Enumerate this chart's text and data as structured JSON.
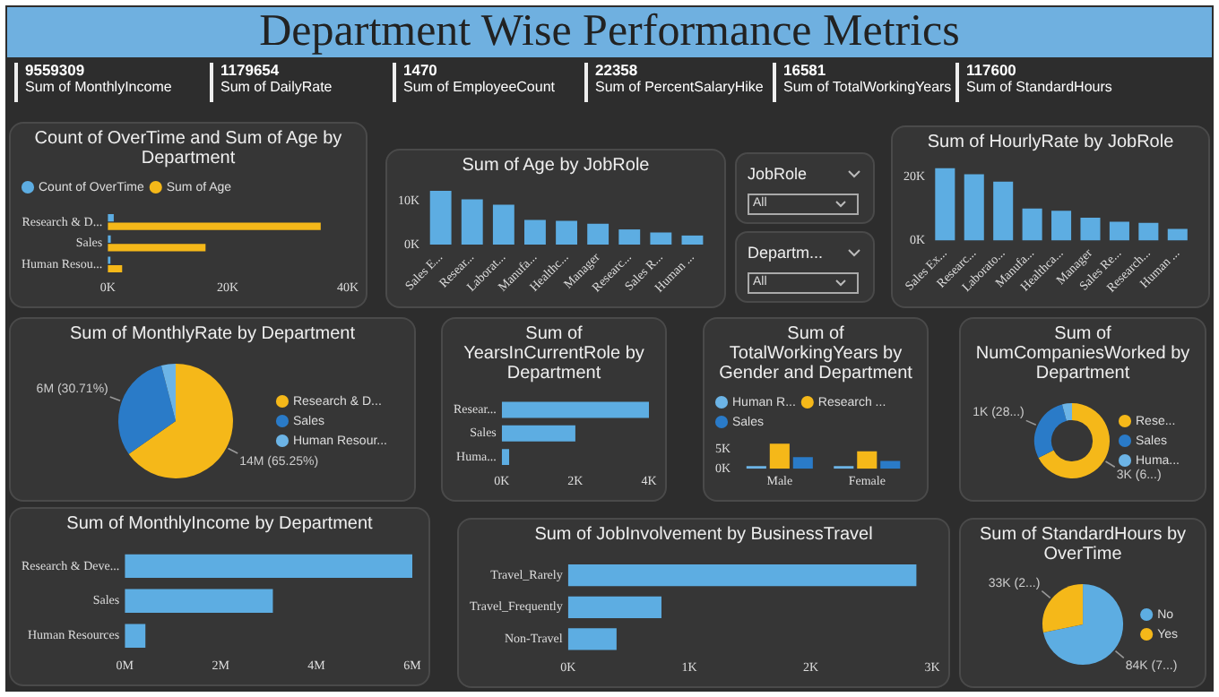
{
  "chart_data": [
    {
      "type": "other",
      "title": "Department Wise Performance Metrics",
      "categories": [
        "Sum of MonthlyIncome",
        "Sum of DailyRate",
        "Sum of EmployeeCount",
        "Sum of PercentSalaryHike",
        "Sum of TotalWorkingYears",
        "Sum of StandardHours"
      ],
      "values": [
        9559309,
        1179654,
        1470,
        22358,
        16581,
        117600
      ],
      "data_labels": true
    },
    {
      "type": "bar",
      "orientation": "horizontal",
      "title": "Count of OverTime and Sum of Age by Department",
      "categories": [
        "Research & D...",
        "Sales",
        "Human Resou..."
      ],
      "series": [
        {
          "name": "Count of OverTime",
          "color": "#5dade2",
          "values": [
            1000,
            500,
            100
          ]
        },
        {
          "name": "Sum of Age",
          "color": "#f5b819",
          "values": [
            35500,
            16300,
            2400
          ]
        }
      ],
      "xlim": [
        0,
        40000
      ],
      "xticks": [
        {
          "value": 0,
          "label": "0K"
        },
        {
          "value": 20000,
          "label": "20K"
        },
        {
          "value": 40000,
          "label": "40K"
        }
      ],
      "legend": "top left"
    },
    {
      "type": "bar",
      "title": "Sum of Age by JobRole",
      "categories": [
        "Sales E...",
        "Resear...",
        "Laborat...",
        "Manufa...",
        "Healthc...",
        "Manager",
        "Researc...",
        "Sales R...",
        "Human ..."
      ],
      "values": [
        12400,
        10400,
        9200,
        5700,
        5500,
        4800,
        3500,
        2800,
        2100
      ],
      "color": "#5dade2",
      "ylim": [
        0,
        12500
      ],
      "yticks": [
        {
          "value": 0,
          "label": "0K"
        },
        {
          "value": 10000,
          "label": "10K"
        }
      ]
    },
    {
      "type": "other",
      "annotations": [
        "JobRole",
        "All",
        "Departm...",
        "All"
      ]
    },
    {
      "type": "bar",
      "title": "Sum of HourlyRate by JobRole",
      "categories": [
        "Sales Ex...",
        "Researc...",
        "Laborato...",
        "Manufa...",
        "Healthca...",
        "Manager",
        "Sales Re...",
        "Research...",
        "Human ..."
      ],
      "values": [
        22600,
        20700,
        18400,
        10000,
        9300,
        7100,
        5900,
        5500,
        3600
      ],
      "color": "#5dade2",
      "ylim": [
        0,
        23000
      ],
      "yticks": [
        {
          "value": 0,
          "label": "0K"
        },
        {
          "value": 20000,
          "label": "20K"
        }
      ]
    },
    {
      "type": "pie",
      "title": "Sum of MonthlyRate by Department",
      "categories": [
        "Research & D...",
        "Sales",
        "Human Resour..."
      ],
      "values": [
        65.25,
        30.71,
        4.04
      ],
      "colors": [
        "#f5b819",
        "#2a7bc8",
        "#6cb4e6"
      ],
      "value_labels": [
        "14M (65.25%)",
        "6M (30.71%)",
        null
      ],
      "legend": "right"
    },
    {
      "type": "bar",
      "orientation": "horizontal",
      "title": "Sum of YearsInCurrentRole by Department",
      "categories": [
        "Resear...",
        "Sales",
        "Huma..."
      ],
      "values": [
        4000,
        2000,
        200
      ],
      "color": "#5dade2",
      "xlim": [
        0,
        4000
      ],
      "xticks": [
        {
          "value": 0,
          "label": "0K"
        },
        {
          "value": 2000,
          "label": "2K"
        },
        {
          "value": 4000,
          "label": "4K"
        }
      ]
    },
    {
      "type": "bar",
      "title": "Sum of TotalWorkingYears by Gender and Department",
      "categories": [
        "Male",
        "Female"
      ],
      "series": [
        {
          "name": "Human R...",
          "color": "#6cb4e6",
          "values": [
            500,
            500
          ]
        },
        {
          "name": "Research ...",
          "color": "#f5b819",
          "values": [
            6500,
            4500
          ]
        },
        {
          "name": "Sales",
          "color": "#2a7bc8",
          "values": [
            3000,
            2000
          ]
        }
      ],
      "ylim": [
        0,
        7000
      ],
      "yticks": [
        {
          "value": 0,
          "label": "0K"
        },
        {
          "value": 5000,
          "label": "5K"
        }
      ],
      "legend": "top left"
    },
    {
      "type": "donut",
      "title": "Sum of NumCompaniesWorked by Department",
      "categories": [
        "Rese...",
        "Sales",
        "Huma..."
      ],
      "values": [
        2700,
        1130,
        170
      ],
      "colors": [
        "#f5b819",
        "#2a7bc8",
        "#6cb4e6"
      ],
      "value_labels": [
        "3K (6...)",
        "1K (28...)",
        null
      ],
      "legend": "right"
    },
    {
      "type": "bar",
      "orientation": "horizontal",
      "title": "Sum of MonthlyIncome by Department",
      "categories": [
        "Research & Deve...",
        "Sales",
        "Human Resources"
      ],
      "values": [
        6000000,
        3090000,
        430000
      ],
      "color": "#5dade2",
      "xlim": [
        0,
        6000000
      ],
      "xticks": [
        {
          "value": 0,
          "label": "0M"
        },
        {
          "value": 2000000,
          "label": "2M"
        },
        {
          "value": 4000000,
          "label": "4M"
        },
        {
          "value": 6000000,
          "label": "6M"
        }
      ]
    },
    {
      "type": "bar",
      "orientation": "horizontal",
      "title": "Sum of JobInvolvement by BusinessTravel",
      "categories": [
        "Travel_Rarely",
        "Travel_Frequently",
        "Non-Travel"
      ],
      "values": [
        2870,
        770,
        400
      ],
      "color": "#5dade2",
      "xlim": [
        0,
        3000
      ],
      "xticks": [
        {
          "value": 0,
          "label": "0K"
        },
        {
          "value": 1000,
          "label": "1K"
        },
        {
          "value": 2000,
          "label": "2K"
        },
        {
          "value": 3000,
          "label": "3K"
        }
      ]
    },
    {
      "type": "pie",
      "title": "Sum of StandardHours by OverTime",
      "categories": [
        "No",
        "Yes"
      ],
      "values": [
        84000,
        33000
      ],
      "colors": [
        "#5dade2",
        "#f5b819"
      ],
      "value_labels": [
        "84K (7...)",
        "33K (2...)"
      ],
      "legend": "right"
    }
  ]
}
